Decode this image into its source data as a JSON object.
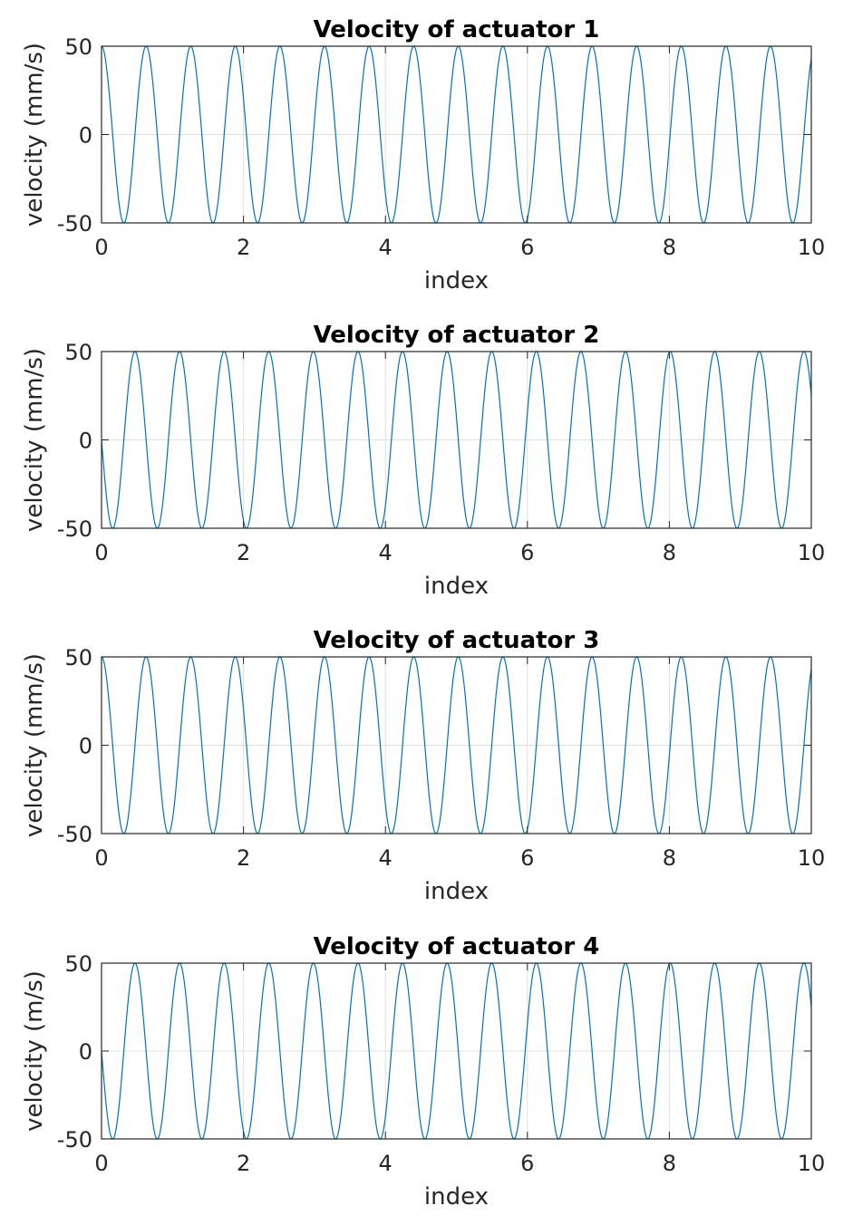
{
  "colors": {
    "series": "#0072bd",
    "axis": "#262626",
    "grid": "#dfdfdf"
  },
  "chart_data": [
    {
      "type": "line",
      "title": "Velocity of actuator 1",
      "xlabel": "index",
      "ylabel": "velocity (mm/s)",
      "xlim": [
        0,
        10
      ],
      "ylim": [
        -50,
        50
      ],
      "xticks": [
        "0",
        "2",
        "4",
        "6",
        "8",
        "10"
      ],
      "yticks": [
        "-50",
        "0",
        "50"
      ],
      "grid": true,
      "series": [
        {
          "function": "cosine",
          "amplitude": 50,
          "angular_frequency": 10,
          "phase": "cos",
          "x_range": [
            0,
            10
          ]
        }
      ]
    },
    {
      "type": "line",
      "title": "Velocity of actuator 2",
      "xlabel": "index",
      "ylabel": "velocity (mm/s)",
      "xlim": [
        0,
        10
      ],
      "ylim": [
        -50,
        50
      ],
      "xticks": [
        "0",
        "2",
        "4",
        "6",
        "8",
        "10"
      ],
      "yticks": [
        "-50",
        "0",
        "50"
      ],
      "grid": true,
      "series": [
        {
          "function": "sine",
          "amplitude": 50,
          "angular_frequency": 10,
          "phase": "-sin",
          "x_range": [
            0,
            10
          ]
        }
      ]
    },
    {
      "type": "line",
      "title": "Velocity of actuator 3",
      "xlabel": "index",
      "ylabel": "velocity (mm/s)",
      "xlim": [
        0,
        10
      ],
      "ylim": [
        -50,
        50
      ],
      "xticks": [
        "0",
        "2",
        "4",
        "6",
        "8",
        "10"
      ],
      "yticks": [
        "-50",
        "0",
        "50"
      ],
      "grid": true,
      "series": [
        {
          "function": "cosine",
          "amplitude": 50,
          "angular_frequency": 10,
          "phase": "cos",
          "x_range": [
            0,
            10
          ]
        }
      ]
    },
    {
      "type": "line",
      "title": "Velocity of actuator 4",
      "xlabel": "index",
      "ylabel": "velocity (m/s)",
      "xlim": [
        0,
        10
      ],
      "ylim": [
        -50,
        50
      ],
      "xticks": [
        "0",
        "2",
        "4",
        "6",
        "8",
        "10"
      ],
      "yticks": [
        "-50",
        "0",
        "50"
      ],
      "grid": true,
      "series": [
        {
          "function": "sine",
          "amplitude": 50,
          "angular_frequency": 10,
          "phase": "-sin",
          "x_range": [
            0,
            10
          ]
        }
      ]
    }
  ]
}
